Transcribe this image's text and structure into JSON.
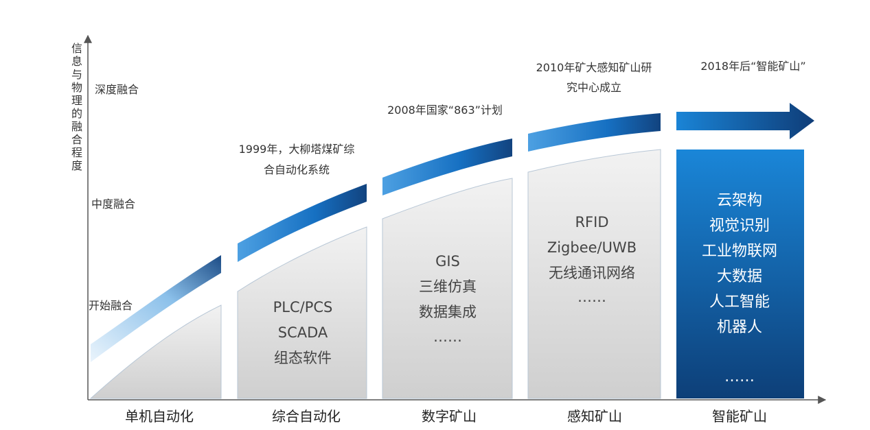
{
  "y_axis": {
    "title": "信息与物理的融合程度",
    "levels": [
      "深度融合",
      "中度融合",
      "开始融合"
    ]
  },
  "stages": [
    {
      "label": "单机自动化",
      "tech": []
    },
    {
      "label": "综合自动化",
      "tech": [
        "PLC/PCS",
        "SCADA",
        "组态软件"
      ]
    },
    {
      "label": "数字矿山",
      "tech": [
        "GIS",
        "三维仿真",
        "数据集成",
        "……"
      ]
    },
    {
      "label": "感知矿山",
      "tech": [
        "RFID",
        "Zigbee/UWB",
        "无线通讯网络",
        "……"
      ]
    },
    {
      "label": "智能矿山",
      "tech": [
        "云架构",
        "视觉识别",
        "工业物联网",
        "大数据",
        "人工智能",
        "机器人",
        "……"
      ]
    }
  ],
  "milestones": [
    [
      "1999年，大柳塔煤矿综",
      "合自动化系统"
    ],
    [
      "2008年国家“863”计划"
    ],
    [
      "2010年矿大感知矿山研",
      "究中心成立"
    ],
    [
      "2018年后“智能矿山”"
    ]
  ],
  "colors": {
    "accent_dark": "#0e3f7a",
    "accent": "#1976cc",
    "accent_light": "#5aa5e0",
    "grey_panel": "#dcdcdc"
  }
}
